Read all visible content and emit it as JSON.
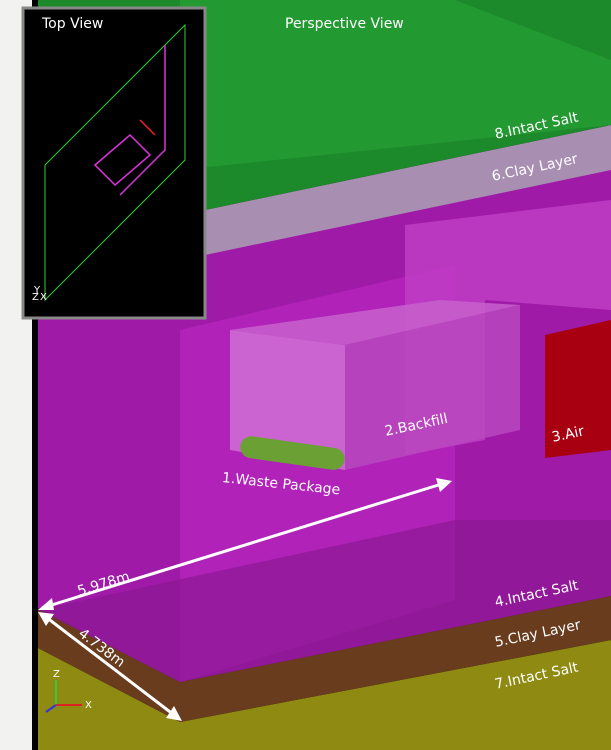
{
  "top_view": {
    "title": "Top View",
    "axes": [
      "Y",
      "Z",
      "X"
    ]
  },
  "perspective_view": {
    "title": "Perspective View",
    "labels": [
      "8.Intact Salt",
      "6.Clay Layer",
      "2.Backfill",
      "3.Air",
      "1.Waste Package",
      "4.Intact Salt",
      "5.Clay Layer",
      "7.Intact Salt"
    ],
    "dimensions": [
      "5.978m",
      "4.738m"
    ],
    "axes": [
      "Z",
      "X"
    ]
  }
}
